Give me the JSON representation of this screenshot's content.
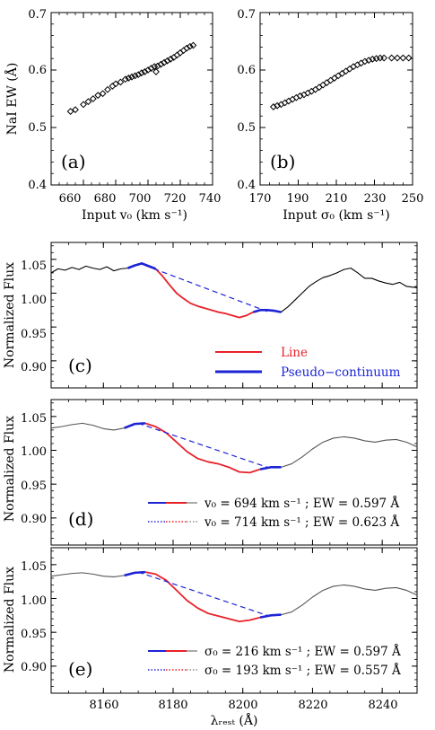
{
  "colors": {
    "spectrum": "#000000",
    "model": "#555555",
    "line": "#e8212b",
    "pseudo_continuum": "#1d24d6",
    "marker": "#000000"
  },
  "chart_data": [
    {
      "id": "a",
      "type": "scatter",
      "panel_label": "(a)",
      "xlabel": "Input  v₀  (km s⁻¹)",
      "ylabel": "NaI  EW  (Å)",
      "xlim": [
        640,
        740
      ],
      "ylim": [
        0.4,
        0.7
      ],
      "xticks": [
        "660",
        "680",
        "700",
        "720",
        "740"
      ],
      "yticks": [
        "0.4",
        "0.5",
        "0.6",
        "0.7"
      ],
      "marker": "open-diamond",
      "x": [
        652,
        655,
        660,
        663,
        666,
        669,
        672,
        675,
        678,
        680,
        683,
        686,
        688,
        690,
        692,
        694,
        696,
        698,
        700,
        702,
        704,
        705,
        706,
        708,
        710,
        712,
        714,
        716,
        718,
        720,
        722,
        724,
        726,
        728
      ],
      "y": [
        0.528,
        0.531,
        0.54,
        0.545,
        0.55,
        0.556,
        0.559,
        0.566,
        0.572,
        0.576,
        0.579,
        0.584,
        0.586,
        0.588,
        0.59,
        0.592,
        0.595,
        0.597,
        0.6,
        0.603,
        0.606,
        0.597,
        0.607,
        0.61,
        0.613,
        0.616,
        0.619,
        0.622,
        0.626,
        0.63,
        0.634,
        0.638,
        0.641,
        0.643
      ]
    },
    {
      "id": "b",
      "type": "scatter",
      "panel_label": "(b)",
      "xlabel": "Input  σ₀  (km s⁻¹)",
      "ylabel": "",
      "xlim": [
        170,
        250
      ],
      "ylim": [
        0.4,
        0.7
      ],
      "xticks": [
        "170",
        "190",
        "210",
        "230",
        "250"
      ],
      "yticks": [
        "0.4",
        "0.5",
        "0.6",
        "0.7"
      ],
      "marker": "open-diamond",
      "x": [
        177,
        179,
        181,
        183,
        185,
        187,
        189,
        191,
        193,
        195,
        197,
        199,
        201,
        203,
        205,
        207,
        209,
        211,
        213,
        215,
        217,
        219,
        221,
        223,
        225,
        227,
        229,
        231,
        233,
        235,
        239,
        242,
        245,
        248
      ],
      "y": [
        0.536,
        0.538,
        0.54,
        0.543,
        0.546,
        0.549,
        0.552,
        0.555,
        0.557,
        0.56,
        0.563,
        0.566,
        0.57,
        0.574,
        0.578,
        0.582,
        0.586,
        0.59,
        0.594,
        0.598,
        0.602,
        0.606,
        0.609,
        0.612,
        0.615,
        0.617,
        0.619,
        0.62,
        0.621,
        0.621,
        0.621,
        0.621,
        0.621,
        0.621
      ]
    },
    {
      "id": "c",
      "type": "line",
      "panel_label": "(c)",
      "ylabel": "Normalized  Flux",
      "xlim": [
        8145,
        8250
      ],
      "ylim": [
        0.86,
        1.075
      ],
      "xticks": [
        "8160",
        "8180",
        "8200",
        "8220",
        "8240"
      ],
      "yticks": [
        "0.90",
        "0.95",
        "1.00",
        "1.05"
      ],
      "show_x_tick_labels": false,
      "series": [
        {
          "role": "spectrum",
          "x": [
            8145,
            8147,
            8149,
            8151,
            8153,
            8155,
            8157,
            8159,
            8161,
            8163,
            8165,
            8167,
            8169,
            8171,
            8173,
            8175,
            8177,
            8179,
            8181,
            8183,
            8185,
            8187,
            8189,
            8191,
            8193,
            8195,
            8197,
            8199,
            8201,
            8203,
            8205,
            8207,
            8209,
            8211,
            8213,
            8215,
            8217,
            8219,
            8221,
            8223,
            8225,
            8227,
            8229,
            8231,
            8233,
            8235,
            8237,
            8239,
            8241,
            8243,
            8245,
            8247,
            8250
          ],
          "y": [
            1.03,
            1.036,
            1.034,
            1.038,
            1.035,
            1.04,
            1.037,
            1.035,
            1.039,
            1.033,
            1.036,
            1.037,
            1.041,
            1.044,
            1.04,
            1.036,
            1.025,
            1.012,
            1.0,
            0.992,
            0.985,
            0.981,
            0.978,
            0.975,
            0.972,
            0.97,
            0.967,
            0.964,
            0.967,
            0.972,
            0.975,
            0.975,
            0.974,
            0.972,
            0.98,
            0.99,
            1.0,
            1.01,
            1.017,
            1.023,
            1.026,
            1.03,
            1.035,
            1.037,
            1.03,
            1.022,
            1.022,
            1.018,
            1.015,
            1.013,
            1.016,
            1.01,
            1.008
          ]
        },
        {
          "role": "line",
          "x": [
            8175,
            8177,
            8179,
            8181,
            8183,
            8185,
            8187,
            8189,
            8191,
            8193,
            8195,
            8197,
            8199,
            8201,
            8203,
            8205
          ],
          "y": [
            1.036,
            1.025,
            1.012,
            1.0,
            0.992,
            0.985,
            0.981,
            0.978,
            0.975,
            0.972,
            0.97,
            0.967,
            0.964,
            0.967,
            0.972,
            0.975
          ]
        },
        {
          "role": "pseudo_continuum",
          "x": [
            8167,
            8169,
            8171,
            8173,
            8175
          ],
          "y": [
            1.037,
            1.041,
            1.044,
            1.04,
            1.036
          ]
        },
        {
          "role": "pseudo_continuum",
          "x": [
            8203,
            8205,
            8207,
            8209,
            8211
          ],
          "y": [
            0.972,
            0.975,
            0.975,
            0.974,
            0.972
          ]
        },
        {
          "role": "continuum",
          "x": [
            8172,
            8207
          ],
          "y": [
            1.041,
            0.973
          ]
        }
      ],
      "legend": [
        {
          "label": "Line",
          "color": "#e8212b"
        },
        {
          "label": "Pseudo−continuum",
          "color": "#1d24d6"
        }
      ]
    },
    {
      "id": "d",
      "type": "line",
      "panel_label": "(d)",
      "ylabel": "Normalized  Flux",
      "xlim": [
        8145,
        8250
      ],
      "ylim": [
        0.86,
        1.075
      ],
      "xticks": [
        "8160",
        "8180",
        "8200",
        "8220",
        "8240"
      ],
      "yticks": [
        "0.90",
        "0.95",
        "1.00",
        "1.05"
      ],
      "show_x_tick_labels": false,
      "series": [
        {
          "role": "spectrum",
          "x": [
            8145,
            8148,
            8151,
            8154,
            8157,
            8160,
            8163,
            8166,
            8169,
            8172,
            8175,
            8178,
            8181,
            8184,
            8187,
            8190,
            8193,
            8196,
            8199,
            8202,
            8205,
            8208,
            8211,
            8214,
            8217,
            8220,
            8223,
            8226,
            8229,
            8232,
            8235,
            8238,
            8241,
            8244,
            8247,
            8250
          ],
          "y": [
            1.033,
            1.035,
            1.038,
            1.04,
            1.037,
            1.032,
            1.03,
            1.033,
            1.039,
            1.04,
            1.035,
            1.026,
            1.012,
            0.998,
            0.988,
            0.983,
            0.98,
            0.975,
            0.968,
            0.967,
            0.972,
            0.975,
            0.975,
            0.98,
            0.99,
            1.002,
            1.012,
            1.018,
            1.02,
            1.018,
            1.014,
            1.012,
            1.015,
            1.016,
            1.012,
            1.005
          ]
        },
        {
          "role": "line",
          "x": [
            8172,
            8175,
            8178,
            8181,
            8184,
            8187,
            8190,
            8193,
            8196,
            8199,
            8202,
            8205,
            8208
          ],
          "y": [
            1.04,
            1.035,
            1.026,
            1.012,
            0.998,
            0.988,
            0.983,
            0.98,
            0.975,
            0.968,
            0.967,
            0.972,
            0.975
          ]
        },
        {
          "role": "pseudo_continuum",
          "x": [
            8166,
            8169,
            8172
          ],
          "y": [
            1.033,
            1.039,
            1.04
          ]
        },
        {
          "role": "pseudo_continuum",
          "x": [
            8205,
            8208,
            8211
          ],
          "y": [
            0.972,
            0.975,
            0.975
          ]
        },
        {
          "role": "continuum",
          "x": [
            8170,
            8207
          ],
          "y": [
            1.04,
            0.975
          ]
        }
      ],
      "legend": [
        {
          "label": "v₀ = 694 km s⁻¹ ;  EW = 0.597 Å",
          "style": "solid"
        },
        {
          "label": "v₀ = 714 km s⁻¹ ;  EW = 0.623 Å",
          "style": "dotted"
        }
      ]
    },
    {
      "id": "e",
      "type": "line",
      "panel_label": "(e)",
      "ylabel": "Normalized  Flux",
      "xlabel": "λᵣₑₛₜ  (Å)",
      "xlim": [
        8145,
        8250
      ],
      "ylim": [
        0.86,
        1.075
      ],
      "xticks": [
        "8160",
        "8180",
        "8200",
        "8220",
        "8240"
      ],
      "yticks": [
        "0.90",
        "0.95",
        "1.00",
        "1.05"
      ],
      "show_x_tick_labels": true,
      "series": [
        {
          "role": "spectrum",
          "x": [
            8145,
            8148,
            8151,
            8154,
            8157,
            8160,
            8163,
            8166,
            8169,
            8172,
            8175,
            8178,
            8181,
            8184,
            8187,
            8190,
            8193,
            8196,
            8199,
            8202,
            8205,
            8208,
            8211,
            8214,
            8217,
            8220,
            8223,
            8226,
            8229,
            8232,
            8235,
            8238,
            8241,
            8244,
            8247,
            8250
          ],
          "y": [
            1.033,
            1.035,
            1.037,
            1.038,
            1.036,
            1.033,
            1.032,
            1.034,
            1.038,
            1.039,
            1.036,
            1.027,
            1.012,
            0.997,
            0.986,
            0.978,
            0.974,
            0.97,
            0.966,
            0.968,
            0.972,
            0.975,
            0.976,
            0.98,
            0.99,
            1.002,
            1.012,
            1.018,
            1.02,
            1.018,
            1.014,
            1.012,
            1.015,
            1.016,
            1.012,
            1.005
          ]
        },
        {
          "role": "line",
          "x": [
            8172,
            8175,
            8178,
            8181,
            8184,
            8187,
            8190,
            8193,
            8196,
            8199,
            8202,
            8205,
            8208
          ],
          "y": [
            1.039,
            1.036,
            1.027,
            1.012,
            0.997,
            0.986,
            0.978,
            0.974,
            0.97,
            0.966,
            0.968,
            0.972,
            0.975
          ]
        },
        {
          "role": "pseudo_continuum",
          "x": [
            8166,
            8169,
            8172
          ],
          "y": [
            1.034,
            1.038,
            1.039
          ]
        },
        {
          "role": "pseudo_continuum",
          "x": [
            8205,
            8208,
            8211
          ],
          "y": [
            0.972,
            0.975,
            0.976
          ]
        },
        {
          "role": "continuum",
          "x": [
            8170,
            8207
          ],
          "y": [
            1.039,
            0.975
          ]
        }
      ],
      "legend": [
        {
          "label": "σ₀ = 216 km s⁻¹ ;  EW = 0.597 Å",
          "style": "solid"
        },
        {
          "label": "σ₀ = 193 km s⁻¹ ;  EW = 0.557 Å",
          "style": "dotted"
        }
      ]
    }
  ]
}
